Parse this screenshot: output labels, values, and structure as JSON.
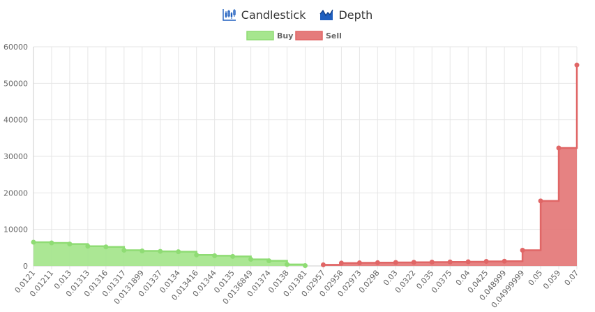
{
  "tabs": [
    {
      "label": "Candlestick",
      "icon": "candlestick-icon"
    },
    {
      "label": "Depth",
      "icon": "depth-chart-icon"
    }
  ],
  "colors": {
    "buy_fill": "#a6e68e",
    "buy_line": "#8fdc74",
    "sell_fill": "#e57b7b",
    "sell_line": "#e06666",
    "grid": "#e6e6e6",
    "icon": "#1f5fbf"
  },
  "chart_data": {
    "type": "area",
    "step": true,
    "categories": [
      "0.0121",
      "0.01211",
      "0.013",
      "0.01313",
      "0.01316",
      "0.01317",
      "0.0131899",
      "0.01337",
      "0.0134",
      "0.013416",
      "0.01344",
      "0.0135",
      "0.0136849",
      "0.01374",
      "0.0138",
      "0.01381",
      "0.02957",
      "0.02958",
      "0.02973",
      "0.0298",
      "0.03",
      "0.0322",
      "0.035",
      "0.0375",
      "0.04",
      "0.0425",
      "0.048999",
      "0.04999999",
      "0.05",
      "0.059",
      "0.07"
    ],
    "series": [
      {
        "name": "Buy",
        "values": [
          6500,
          6300,
          6000,
          5400,
          5200,
          4300,
          4100,
          4000,
          3900,
          3000,
          2800,
          2600,
          1800,
          1400,
          400,
          100,
          null,
          null,
          null,
          null,
          null,
          null,
          null,
          null,
          null,
          null,
          null,
          null,
          null,
          null,
          null
        ]
      },
      {
        "name": "Sell",
        "values": [
          null,
          null,
          null,
          null,
          null,
          null,
          null,
          null,
          null,
          null,
          null,
          null,
          null,
          null,
          null,
          null,
          300,
          800,
          850,
          900,
          950,
          1000,
          1050,
          1100,
          1150,
          1250,
          1300,
          4300,
          17800,
          32300,
          55000
        ]
      }
    ],
    "ylim": [
      0,
      60000
    ],
    "yticks": [
      0,
      10000,
      20000,
      30000,
      40000,
      50000,
      60000
    ],
    "grid": true,
    "legend": "top-center"
  }
}
